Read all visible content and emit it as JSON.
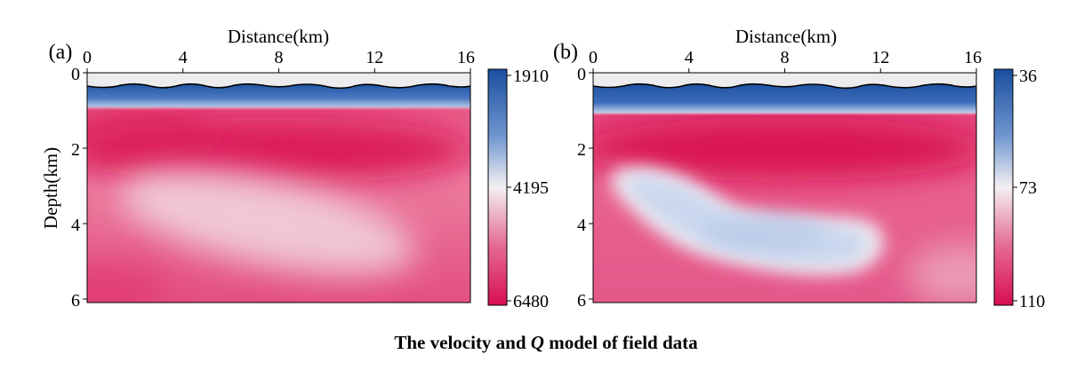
{
  "caption": {
    "before": "The velocity and ",
    "italic": "Q",
    "after": " model of field data"
  },
  "colors": {
    "low_velocity_blue": "#1a4f9e",
    "mid_white": "#f4f0f3",
    "high_red": "#d70f50",
    "air": "#ececef",
    "surface_line": "#000000"
  },
  "chart_data": [
    {
      "type": "heatmap",
      "panel_label": "(a)",
      "xlabel": "Distance(km)",
      "ylabel": "Depth(km)",
      "xlim": [
        0,
        16
      ],
      "ylim": [
        6.1,
        0
      ],
      "x_ticks": [
        0,
        4,
        8,
        12,
        16
      ],
      "y_ticks": [
        0,
        2,
        4,
        6
      ],
      "colorbar": {
        "ticks": [
          1910,
          4195,
          6480
        ],
        "colors": [
          "#1a4f9e",
          "#f4f0f3",
          "#d70f50"
        ]
      },
      "surface_depth_km": 0.45,
      "features": [
        {
          "type": "weathered-layer",
          "depth_km": [
            0.4,
            0.8
          ],
          "value": 1910
        },
        {
          "type": "high-velocity-band",
          "center_x_km": 8,
          "center_depth_km": 2.1,
          "value": 6480
        },
        {
          "type": "low-velocity-lens",
          "center_x_km": 7,
          "center_depth_km": 4.0,
          "value": 4800
        }
      ]
    },
    {
      "type": "heatmap",
      "panel_label": "(b)",
      "xlabel": "Distance(km)",
      "ylabel": "",
      "xlim": [
        0,
        16
      ],
      "ylim": [
        6.1,
        0
      ],
      "x_ticks": [
        0,
        4,
        8,
        12,
        16
      ],
      "y_ticks": [
        0,
        2,
        4,
        6
      ],
      "colorbar": {
        "ticks": [
          36,
          73,
          110
        ],
        "colors": [
          "#1a4f9e",
          "#f4f0f3",
          "#d70f50"
        ]
      },
      "surface_depth_km": 0.45,
      "features": [
        {
          "type": "weathered-layer",
          "depth_km": [
            0.4,
            0.9
          ],
          "value": 36
        },
        {
          "type": "high-Q-band",
          "center_x_km": 8,
          "center_depth_km": 2.1,
          "value": 110
        },
        {
          "type": "low-Q-body",
          "center_x_km": 6.5,
          "center_depth_km": 3.9,
          "value": 66
        }
      ]
    }
  ]
}
